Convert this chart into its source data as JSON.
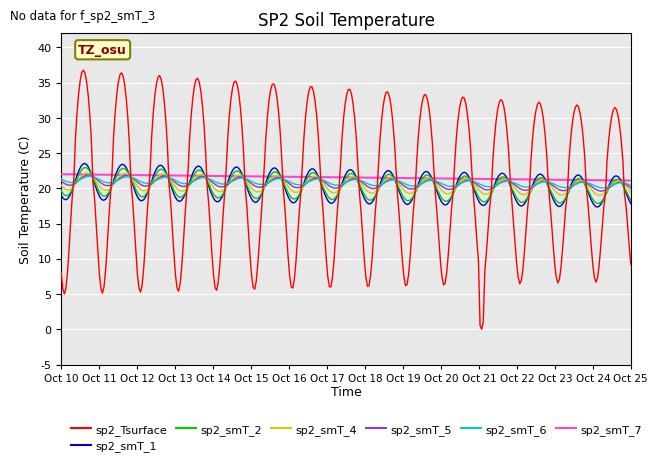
{
  "title": "SP2 Soil Temperature",
  "no_data_text": "No data for f_sp2_smT_3",
  "ylabel": "Soil Temperature (C)",
  "xlabel": "Time",
  "tz_label": "TZ_osu",
  "ylim": [
    -5,
    42
  ],
  "yticks": [
    -5,
    0,
    5,
    10,
    15,
    20,
    25,
    30,
    35,
    40
  ],
  "x_labels": [
    "Oct 10",
    "Oct 11",
    "Oct 12",
    "Oct 13",
    "Oct 14",
    "Oct 15",
    "Oct 16",
    "Oct 17",
    "Oct 18",
    "Oct 19",
    "Oct 20",
    "Oct 21",
    "Oct 22",
    "Oct 23",
    "Oct 24",
    "Oct 25"
  ],
  "bg_color": "#ffffff",
  "plot_bg_color": "#e8e8e8",
  "series_colors": {
    "sp2_Tsurface": "#ff0000",
    "sp2_smT_1": "#0000cc",
    "sp2_smT_2": "#00cc00",
    "sp2_smT_4": "#cccc00",
    "sp2_smT_5": "#9933cc",
    "sp2_smT_6": "#00cccc",
    "sp2_smT_7": "#ff44cc"
  },
  "legend_entries": [
    {
      "label": "sp2_Tsurface",
      "color": "#ff0000"
    },
    {
      "label": "sp2_smT_1",
      "color": "#0000cc"
    },
    {
      "label": "sp2_smT_2",
      "color": "#00cc00"
    },
    {
      "label": "sp2_smT_4",
      "color": "#cccc00"
    },
    {
      "label": "sp2_smT_5",
      "color": "#9933cc"
    },
    {
      "label": "sp2_smT_6",
      "color": "#00cccc"
    },
    {
      "label": "sp2_smT_7",
      "color": "#ff44cc"
    }
  ]
}
